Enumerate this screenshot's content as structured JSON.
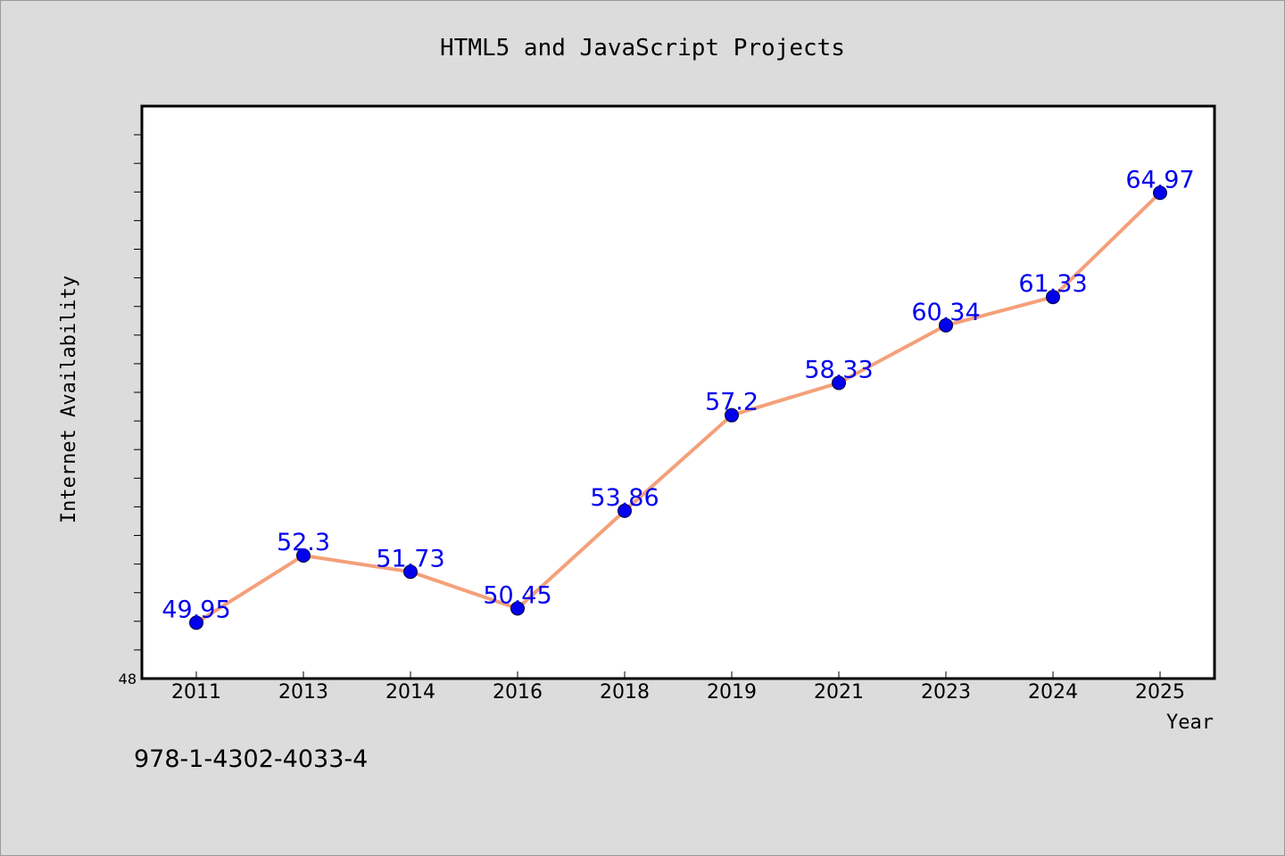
{
  "footer": {
    "isbn": "978-1-4302-4033-4"
  },
  "chart_data": {
    "type": "line",
    "title": "HTML5 and JavaScript Projects",
    "xlabel": "Year",
    "ylabel": "Internet Availability",
    "categories": [
      "2011",
      "2013",
      "2014",
      "2016",
      "2018",
      "2019",
      "2021",
      "2023",
      "2024",
      "2025"
    ],
    "values": [
      49.95,
      52.3,
      51.73,
      50.45,
      53.86,
      57.2,
      58.33,
      60.34,
      61.33,
      64.97
    ],
    "data_labels": [
      "49.95",
      "52.3",
      "51.73",
      "50.45",
      "53.86",
      "57.2",
      "58.33",
      "60.34",
      "61.33",
      "64.97"
    ],
    "ylim": [
      48,
      68
    ],
    "y_tick_labels": [
      "48"
    ],
    "grid": false,
    "colors": {
      "line": "#f4a07a",
      "marker": "#0000ee",
      "data_label": "#0000ee",
      "plot_background": "#ffffff",
      "page_background": "#dcdcdc"
    }
  }
}
